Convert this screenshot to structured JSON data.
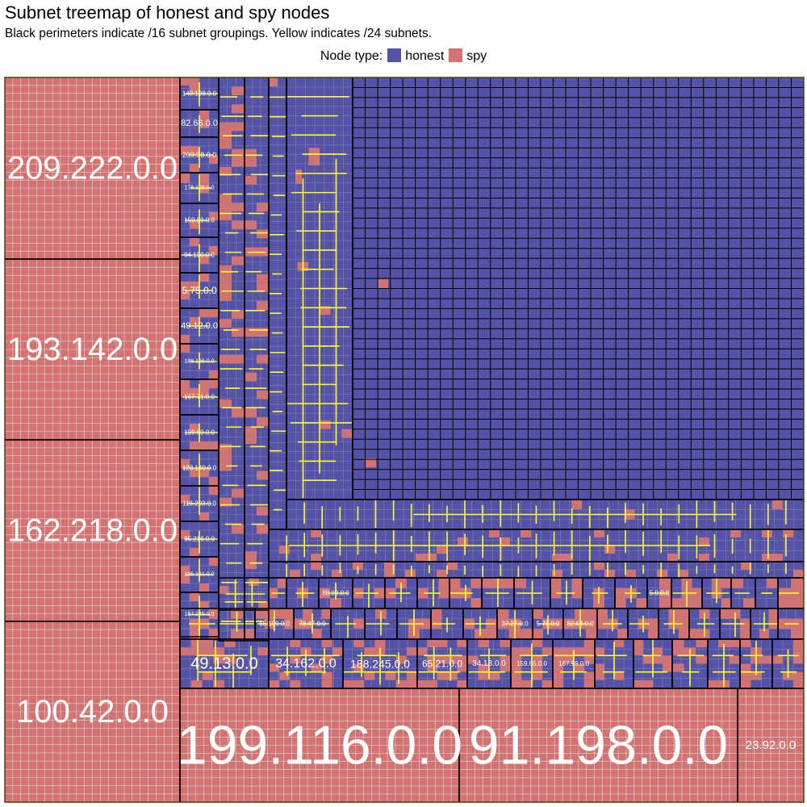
{
  "title": "Subnet treemap of honest and spy nodes",
  "subtitle": "Black perimeters indicate /16 subnet groupings. Yellow indicates /24 subnets.",
  "legend": {
    "label": "Node type:",
    "items": [
      {
        "name": "honest",
        "color": "#5553A8"
      },
      {
        "name": "spy",
        "color": "#D47272"
      }
    ]
  },
  "colors": {
    "honest": "#5553A8",
    "spy": "#D47272",
    "slash24_border": "#FFFF33",
    "slash16_border": "#000000",
    "node_border": "#D9D9D9"
  },
  "chart_data": {
    "type": "treemap",
    "groups": [
      {
        "label": "209.222.0.0",
        "node_type": "spy"
      },
      {
        "label": "193.142.0.0",
        "node_type": "spy"
      },
      {
        "label": "162.218.0.0",
        "node_type": "spy"
      },
      {
        "label": "100.42.0.0",
        "node_type": "spy"
      },
      {
        "label": "199.116.0.0",
        "node_type": "spy"
      },
      {
        "label": "91.198.0.0",
        "node_type": "spy"
      },
      {
        "label": "23.92.0.0",
        "node_type": "spy"
      },
      {
        "label": "49.13.0.0",
        "node_type": "mixed"
      },
      {
        "label": "34.162.0.0",
        "node_type": "mixed"
      },
      {
        "label": "188.245.0.0",
        "node_type": "mixed"
      },
      {
        "label": "65.21.0.0",
        "node_type": "mixed"
      },
      {
        "label": "34.18.0.0",
        "node_type": "mixed"
      },
      {
        "label": "159.65.0.0",
        "node_type": "mixed"
      },
      {
        "label": "167.99.0.0",
        "node_type": "mixed"
      },
      {
        "label": "65.109.0.0",
        "node_type": "mixed"
      },
      {
        "label": "78.47.0.0",
        "node_type": "mixed"
      },
      {
        "label": "37.27.0.0",
        "node_type": "mixed"
      },
      {
        "label": "5.78.0.0",
        "node_type": "mixed"
      },
      {
        "label": "82.64.0.0",
        "node_type": "mixed"
      },
      {
        "label": "88.99.0.0",
        "node_type": "mixed"
      },
      {
        "label": "5.9.0.0",
        "node_type": "mixed"
      },
      {
        "label": "143.198.0.0",
        "node_type": "mixed"
      },
      {
        "label": "82.66.0.0",
        "node_type": "mixed"
      },
      {
        "label": "209.38.0.0",
        "node_type": "mixed"
      },
      {
        "label": "178.128.0.0",
        "node_type": "mixed"
      },
      {
        "label": "159.89.0.0",
        "node_type": "mixed"
      },
      {
        "label": "94.130.0.0",
        "node_type": "mixed"
      },
      {
        "label": "5.75.0.0",
        "node_type": "mixed"
      },
      {
        "label": "49.12.0.0",
        "node_type": "mixed"
      },
      {
        "label": "188.166.0.0",
        "node_type": "mixed"
      },
      {
        "label": "167.71.0.0",
        "node_type": "mixed"
      },
      {
        "label": "159.69.0.0",
        "node_type": "mixed"
      },
      {
        "label": "128.140.0.0",
        "node_type": "mixed"
      },
      {
        "label": "116.203.0.0",
        "node_type": "mixed"
      },
      {
        "label": "95.216.0.0",
        "node_type": "mixed"
      },
      {
        "label": "135.181.0.0",
        "node_type": "mixed"
      },
      {
        "label": "157.245.0.0",
        "node_type": "mixed"
      }
    ]
  }
}
